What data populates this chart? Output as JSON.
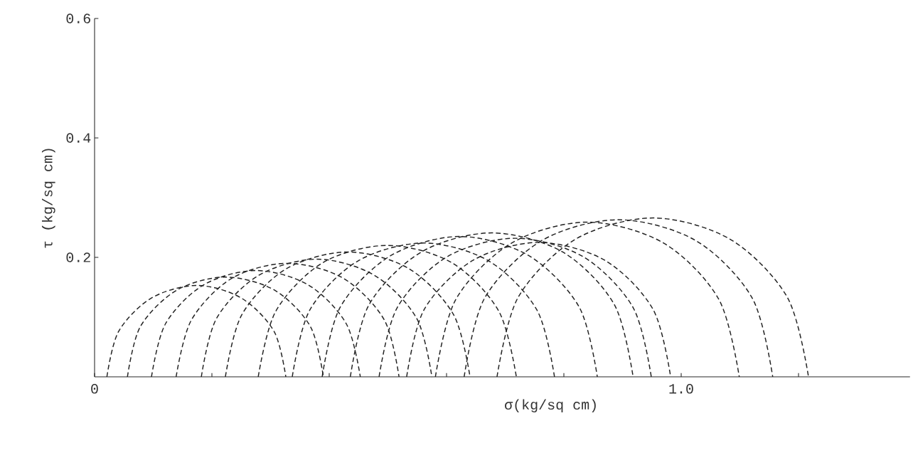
{
  "chart_data": {
    "type": "line",
    "xlabel": "σ(kg/sq cm)",
    "ylabel": "τ (kg/sq cm)",
    "xlim": [
      0,
      1.39
    ],
    "ylim": [
      0,
      0.6
    ],
    "xticks": [
      0,
      {
        "value": 0.2,
        "label": null
      },
      {
        "value": 0.4,
        "label": null
      },
      {
        "value": 0.6,
        "label": null
      },
      {
        "value": 0.8,
        "label": null
      },
      {
        "value": 1.0,
        "label": "1.0"
      },
      {
        "value": 1.2,
        "label": null
      }
    ],
    "yticks": [
      0.2,
      0.4,
      0.6
    ],
    "line_style": "dashed",
    "series": [
      {
        "color": "#222222",
        "x": [
          0.021,
          0.041,
          0.097,
          0.174,
          0.25,
          0.306,
          0.326
        ],
        "values": [
          0,
          0.076,
          0.132,
          0.153,
          0.132,
          0.076,
          0
        ]
      },
      {
        "color": "#222222",
        "x": [
          0.056,
          0.078,
          0.14,
          0.223,
          0.307,
          0.368,
          0.39
        ],
        "values": [
          0,
          0.084,
          0.145,
          0.167,
          0.145,
          0.084,
          0
        ]
      },
      {
        "color": "#222222",
        "x": [
          0.097,
          0.121,
          0.186,
          0.275,
          0.364,
          0.429,
          0.453
        ],
        "values": [
          0,
          0.089,
          0.154,
          0.178,
          0.154,
          0.089,
          0
        ]
      },
      {
        "color": "#222222",
        "x": [
          0.139,
          0.165,
          0.234,
          0.329,
          0.424,
          0.494,
          0.519
        ],
        "values": [
          0,
          0.095,
          0.165,
          0.19,
          0.165,
          0.095,
          0
        ]
      },
      {
        "color": "#222222",
        "x": [
          0.182,
          0.208,
          0.28,
          0.379,
          0.477,
          0.549,
          0.575
        ],
        "values": [
          0,
          0.098,
          0.17,
          0.197,
          0.17,
          0.098,
          0
        ]
      },
      {
        "color": "#222222",
        "x": [
          0.223,
          0.251,
          0.327,
          0.432,
          0.536,
          0.612,
          0.64
        ],
        "values": [
          0,
          0.104,
          0.181,
          0.209,
          0.181,
          0.104,
          0
        ]
      },
      {
        "color": "#222222",
        "x": [
          0.279,
          0.309,
          0.389,
          0.499,
          0.609,
          0.689,
          0.719
        ],
        "values": [
          0,
          0.11,
          0.191,
          0.22,
          0.191,
          0.11,
          0
        ]
      },
      {
        "color": "#222222",
        "x": [
          0.337,
          0.367,
          0.449,
          0.561,
          0.672,
          0.754,
          0.784
        ],
        "values": [
          0,
          0.112,
          0.194,
          0.224,
          0.194,
          0.112,
          0
        ]
      },
      {
        "color": "#222222",
        "x": [
          0.388,
          0.419,
          0.505,
          0.623,
          0.74,
          0.826,
          0.857
        ],
        "values": [
          0,
          0.117,
          0.203,
          0.235,
          0.203,
          0.117,
          0
        ]
      },
      {
        "color": "#222222",
        "x": [
          0.436,
          0.468,
          0.557,
          0.677,
          0.798,
          0.886,
          0.918
        ],
        "values": [
          0,
          0.121,
          0.209,
          0.241,
          0.209,
          0.121,
          0
        ]
      },
      {
        "color": "#222222",
        "x": [
          0.485,
          0.516,
          0.601,
          0.717,
          0.833,
          0.918,
          0.949
        ],
        "values": [
          0,
          0.116,
          0.201,
          0.232,
          0.201,
          0.116,
          0
        ]
      },
      {
        "color": "#222222",
        "x": [
          0.532,
          0.562,
          0.645,
          0.757,
          0.87,
          0.952,
          0.982
        ],
        "values": [
          0,
          0.113,
          0.195,
          0.225,
          0.195,
          0.113,
          0
        ]
      },
      {
        "color": "#222222",
        "x": [
          0.581,
          0.616,
          0.711,
          0.84,
          0.97,
          1.064,
          1.099
        ],
        "values": [
          0,
          0.13,
          0.224,
          0.259,
          0.224,
          0.13,
          0
        ]
      },
      {
        "color": "#222222",
        "x": [
          0.63,
          0.665,
          0.762,
          0.893,
          1.025,
          1.121,
          1.156
        ],
        "values": [
          0,
          0.132,
          0.228,
          0.263,
          0.228,
          0.132,
          0
        ]
      },
      {
        "color": "#222222",
        "x": [
          0.686,
          0.722,
          0.819,
          0.952,
          1.084,
          1.181,
          1.217
        ],
        "values": [
          0,
          0.133,
          0.23,
          0.266,
          0.23,
          0.133,
          0
        ]
      }
    ]
  }
}
